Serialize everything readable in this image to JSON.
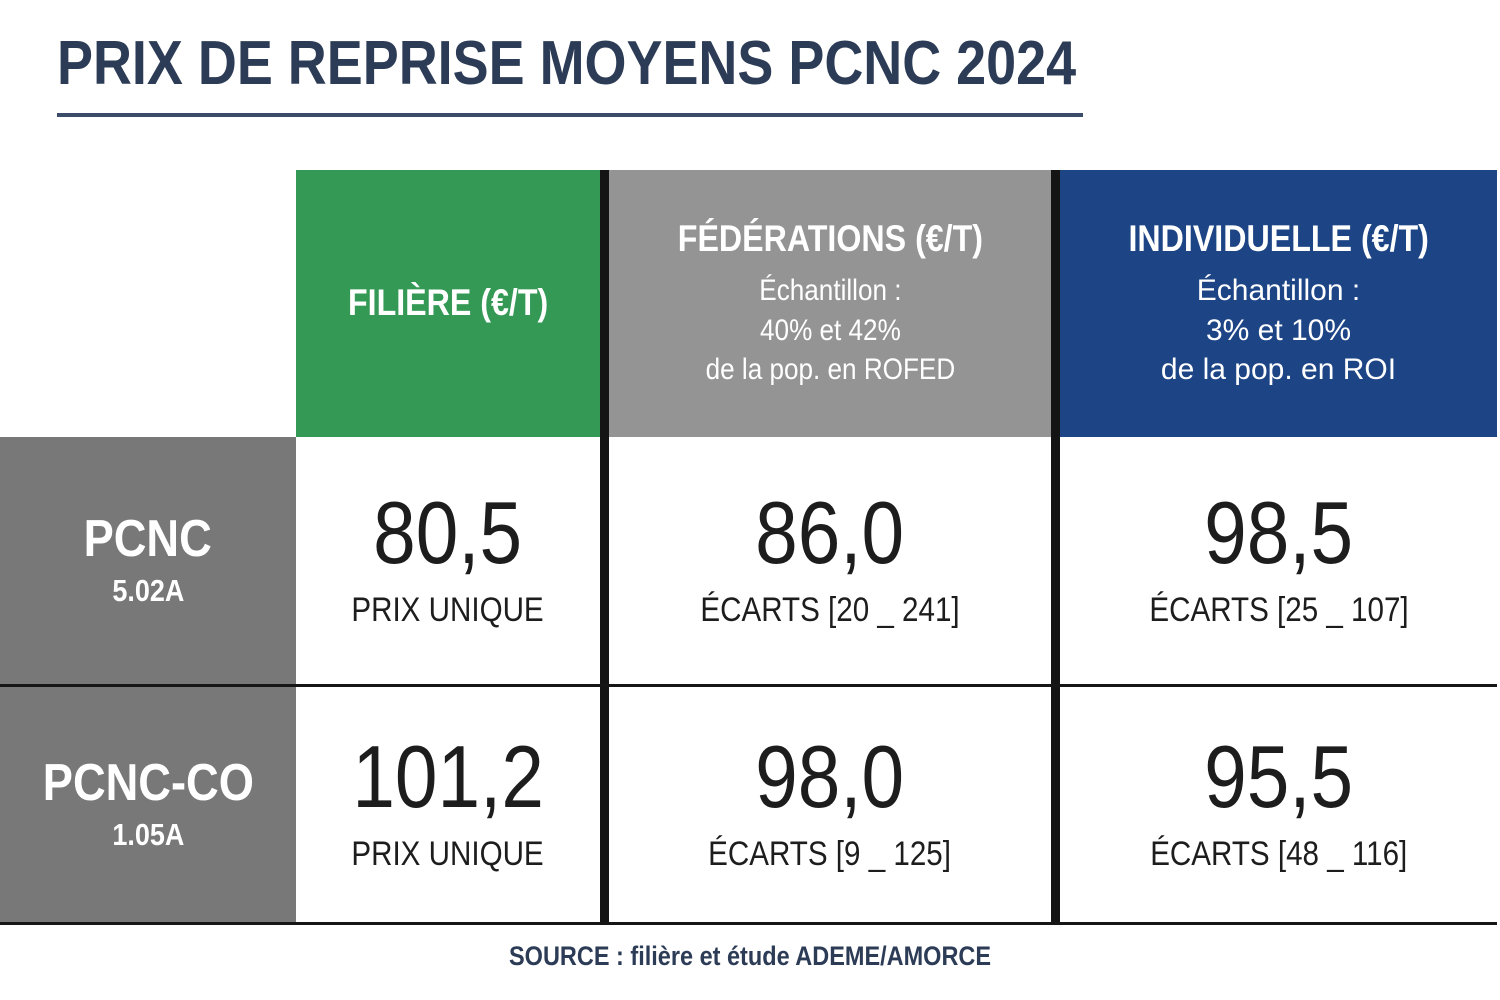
{
  "title": "PRIX DE REPRISE MOYENS PCNC 2024",
  "source_note": "SOURCE : filière et étude ADEME/AMORCE",
  "colors": {
    "title_navy": "#2d3c56",
    "filiere_green": "#339955",
    "federations_gray": "#949494",
    "individuelle_blue": "#1d4586",
    "row_header_gray": "#787878",
    "divider_black": "#141414",
    "value_text": "#1d1d1d"
  },
  "table": {
    "columns": [
      {
        "label": "FILIÈRE (€/T)"
      },
      {
        "label": "FÉDÉRATIONS (€/T)",
        "subtitle_lines": [
          "Échantillon :",
          "40% et 42%",
          "de la pop. en ROFED"
        ]
      },
      {
        "label": "INDIVIDUELLE (€/T)",
        "subtitle_lines": [
          "Échantillon :",
          "3% et 10%",
          "de la pop. en ROI"
        ]
      }
    ],
    "rows": [
      {
        "name": "PCNC",
        "code": "5.02A",
        "cells": [
          {
            "value": "80,5",
            "label": "PRIX UNIQUE"
          },
          {
            "value": "86,0",
            "label": "ÉCARTS [20 _ 241]"
          },
          {
            "value": "98,5",
            "label": "ÉCARTS [25 _ 107]"
          }
        ]
      },
      {
        "name": "PCNC-CO",
        "code": "1.05A",
        "cells": [
          {
            "value": "101,2",
            "label": "PRIX UNIQUE"
          },
          {
            "value": "98,0",
            "label": "ÉCARTS [9 _ 125]"
          },
          {
            "value": "95,5",
            "label": "ÉCARTS [48 _ 116]"
          }
        ]
      }
    ]
  },
  "chart_data": {
    "type": "table",
    "title": "PRIX DE REPRISE MOYENS PCNC 2024",
    "columns": [
      "FILIÈRE (€/T)",
      "FÉDÉRATIONS (€/T)",
      "INDIVIDUELLE (€/T)"
    ],
    "column_notes": [
      "",
      "Échantillon : 40% et 42% de la pop. en ROFED",
      "Échantillon : 3% et 10% de la pop. en ROI"
    ],
    "rows": [
      {
        "label": "PCNC 5.02A",
        "filiere": 80.5,
        "filiere_note": "PRIX UNIQUE",
        "federations": 86.0,
        "federations_ecarts": [
          20,
          241
        ],
        "individuelle": 98.5,
        "individuelle_ecarts": [
          25,
          107
        ]
      },
      {
        "label": "PCNC-CO 1.05A",
        "filiere": 101.2,
        "filiere_note": "PRIX UNIQUE",
        "federations": 98.0,
        "federations_ecarts": [
          9,
          125
        ],
        "individuelle": 95.5,
        "individuelle_ecarts": [
          48,
          116
        ]
      }
    ],
    "source": "SOURCE : filière et étude ADEME/AMORCE"
  }
}
